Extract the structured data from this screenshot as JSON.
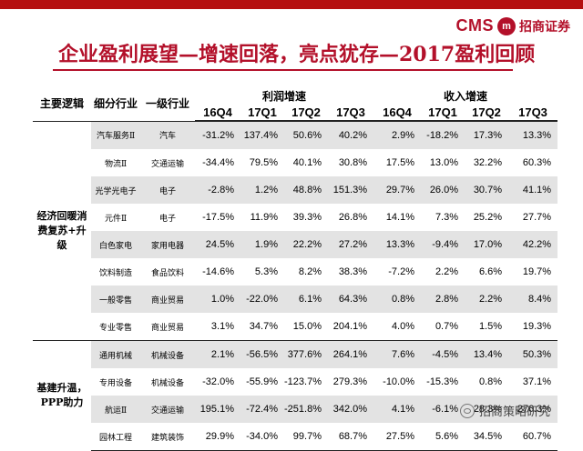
{
  "header": {
    "logo_text": "CMS",
    "logo_mark": "m",
    "logo_cn": "招商证券",
    "title": "企业盈利展望—增速回落，亮点犹存—2017盈利回顾"
  },
  "table": {
    "col_group1": "主要逻辑",
    "col_sub": "细分行业",
    "col_industry": "一级行业",
    "profit_growth": "利润增速",
    "revenue_growth": "收入增速",
    "quarters": [
      "16Q4",
      "17Q1",
      "17Q2",
      "17Q3",
      "16Q4",
      "17Q1",
      "17Q2",
      "17Q3"
    ],
    "groups": [
      {
        "name": "经济回暖消费复苏+升级"
      },
      {
        "name": "基建升温，PPP助力"
      }
    ],
    "rows": [
      {
        "sub": "汽车服务Ⅱ",
        "industry": "汽车",
        "vals": [
          "-31.2%",
          "137.4%",
          "50.6%",
          "40.2%",
          "2.9%",
          "-18.2%",
          "17.3%",
          "13.3%"
        ]
      },
      {
        "sub": "物流Ⅱ",
        "industry": "交通运输",
        "vals": [
          "-34.4%",
          "79.5%",
          "40.1%",
          "30.8%",
          "17.5%",
          "13.0%",
          "32.2%",
          "60.3%"
        ]
      },
      {
        "sub": "光学光电子",
        "industry": "电子",
        "vals": [
          "-2.8%",
          "1.2%",
          "48.8%",
          "151.3%",
          "29.7%",
          "26.0%",
          "30.7%",
          "41.1%"
        ]
      },
      {
        "sub": "元件Ⅱ",
        "industry": "电子",
        "vals": [
          "-17.5%",
          "11.9%",
          "39.3%",
          "26.8%",
          "14.1%",
          "7.3%",
          "25.2%",
          "27.7%"
        ]
      },
      {
        "sub": "白色家电",
        "industry": "家用电器",
        "vals": [
          "24.5%",
          "1.9%",
          "22.2%",
          "27.2%",
          "13.3%",
          "-9.4%",
          "17.0%",
          "42.2%"
        ]
      },
      {
        "sub": "饮料制造",
        "industry": "食品饮料",
        "vals": [
          "-14.6%",
          "5.3%",
          "8.2%",
          "38.3%",
          "-7.2%",
          "2.2%",
          "6.6%",
          "19.7%"
        ]
      },
      {
        "sub": "一般零售",
        "industry": "商业贸易",
        "vals": [
          "1.0%",
          "-22.0%",
          "6.1%",
          "64.3%",
          "0.8%",
          "2.8%",
          "2.2%",
          "8.4%"
        ]
      },
      {
        "sub": "专业零售",
        "industry": "商业贸易",
        "vals": [
          "3.1%",
          "34.7%",
          "15.0%",
          "204.1%",
          "4.0%",
          "0.7%",
          "1.5%",
          "19.3%"
        ]
      },
      {
        "sub": "通用机械",
        "industry": "机械设备",
        "vals": [
          "2.1%",
          "-56.5%",
          "377.6%",
          "264.1%",
          "7.6%",
          "-4.5%",
          "13.4%",
          "50.3%"
        ]
      },
      {
        "sub": "专用设备",
        "industry": "机械设备",
        "vals": [
          "-32.0%",
          "-55.9%",
          "-123.7%",
          "279.3%",
          "-10.0%",
          "-15.3%",
          "0.8%",
          "37.1%"
        ]
      },
      {
        "sub": "航运Ⅱ",
        "industry": "交通运输",
        "vals": [
          "195.1%",
          "-72.4%",
          "-251.8%",
          "342.0%",
          "4.1%",
          "-6.1%",
          "28.3%",
          "276.3%"
        ]
      },
      {
        "sub": "园林工程",
        "industry": "建筑装饰",
        "vals": [
          "29.9%",
          "-34.0%",
          "99.7%",
          "68.7%",
          "27.5%",
          "5.6%",
          "34.5%",
          "60.7%"
        ]
      }
    ]
  },
  "watermark": {
    "text": "招商策略研究",
    "icon": "wechat-icon"
  }
}
